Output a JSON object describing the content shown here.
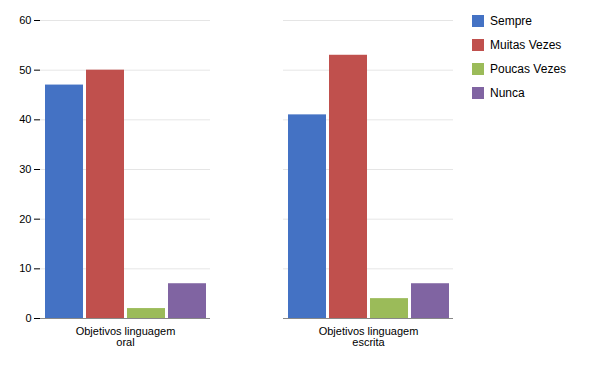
{
  "chart_data": {
    "type": "bar",
    "categories": [
      "Objetivos linguagem\noral",
      "Objetivos linguagem\nescrita"
    ],
    "series": [
      {
        "name": "Sempre",
        "color": "#4472C4",
        "values": [
          47,
          41
        ]
      },
      {
        "name": "Muitas Vezes",
        "color": "#C0504D",
        "values": [
          50,
          53
        ]
      },
      {
        "name": "Poucas Vezes",
        "color": "#9BBB59",
        "values": [
          2,
          4
        ]
      },
      {
        "name": "Nunca",
        "color": "#8064A2",
        "values": [
          7,
          7
        ]
      }
    ],
    "ylim": [
      0,
      60
    ],
    "yticks": [
      0,
      10,
      20,
      30,
      40,
      50,
      60
    ],
    "grid": true,
    "legend": "right"
  }
}
